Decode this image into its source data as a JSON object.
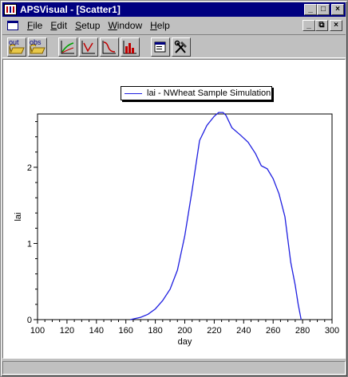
{
  "window": {
    "title": "APSVisual - [Scatter1]",
    "title_buttons": [
      "_",
      "□",
      "×"
    ],
    "mdi_buttons": [
      "_",
      "⧉",
      "×"
    ]
  },
  "menu": {
    "items": [
      {
        "label": "File",
        "u": "F",
        "rest": "ile"
      },
      {
        "label": "Edit",
        "u": "E",
        "rest": "dit"
      },
      {
        "label": "Setup",
        "u": "S",
        "rest": "etup"
      },
      {
        "label": "Window",
        "u": "W",
        "rest": "indow"
      },
      {
        "label": "Help",
        "u": "H",
        "rest": "elp"
      }
    ]
  },
  "toolbar": {
    "open_out_label": "out",
    "open_obs_label": "obs",
    "icons": [
      "open-out-icon",
      "open-obs-icon",
      "line-chart-icon",
      "scatter-chart-icon",
      "area-chart-icon",
      "bar-chart-icon",
      "properties-icon",
      "tools-icon"
    ]
  },
  "colors": {
    "series": "#1f1fe0",
    "titlebar": "#000080",
    "face": "#c0c0c0"
  },
  "chart_data": {
    "type": "line",
    "xlabel": "day",
    "ylabel": "lai",
    "xlim": [
      100,
      300
    ],
    "ylim": [
      0,
      2.7
    ],
    "xticks": [
      100,
      120,
      140,
      160,
      180,
      200,
      220,
      240,
      260,
      280,
      300
    ],
    "yticks": [
      0,
      1,
      2
    ],
    "legend_position": "top-center",
    "series": [
      {
        "name": "lai - NWheat Sample Simulation",
        "x": [
          163,
          170,
          175,
          180,
          185,
          190,
          195,
          200,
          205,
          210,
          215,
          220,
          223,
          226,
          228,
          232,
          238,
          243,
          248,
          252,
          256,
          260,
          264,
          268,
          272,
          275,
          277,
          279
        ],
        "y": [
          0.0,
          0.03,
          0.07,
          0.14,
          0.25,
          0.4,
          0.65,
          1.1,
          1.7,
          2.35,
          2.55,
          2.67,
          2.72,
          2.72,
          2.68,
          2.52,
          2.42,
          2.33,
          2.18,
          2.02,
          1.98,
          1.85,
          1.65,
          1.35,
          0.75,
          0.45,
          0.2,
          0.0
        ]
      }
    ]
  }
}
